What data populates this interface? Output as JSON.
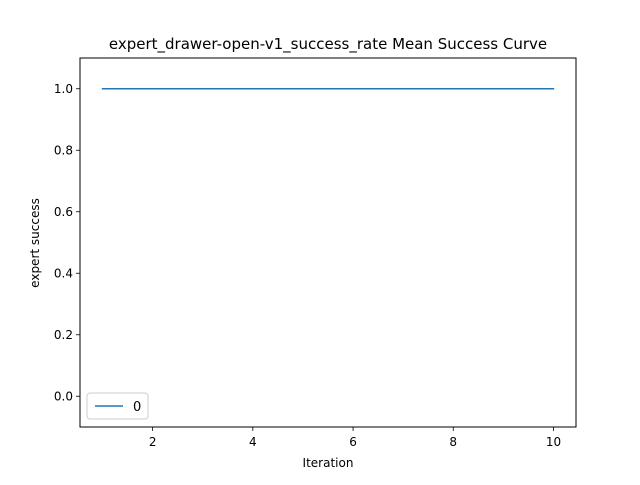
{
  "chart_data": {
    "type": "line",
    "title": "expert_drawer-open-v1_success_rate Mean Success Curve",
    "xlabel": "Iteration",
    "ylabel": "expert success",
    "xlim": [
      0.55,
      10.45
    ],
    "ylim": [
      -0.1,
      1.1
    ],
    "xticks": [
      2,
      4,
      6,
      8,
      10
    ],
    "yticks": [
      0.0,
      0.2,
      0.4,
      0.6,
      0.8,
      1.0
    ],
    "grid": false,
    "legend_position": "lower-left",
    "series": [
      {
        "name": "0",
        "color": "#1f77b4",
        "x": [
          1,
          2,
          3,
          4,
          5,
          6,
          7,
          8,
          9,
          10
        ],
        "y": [
          1.0,
          1.0,
          1.0,
          1.0,
          1.0,
          1.0,
          1.0,
          1.0,
          1.0,
          1.0
        ]
      }
    ]
  }
}
